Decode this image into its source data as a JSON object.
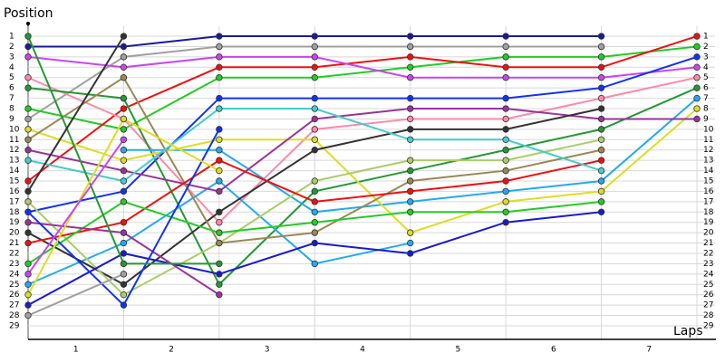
{
  "chart_data": {
    "type": "line",
    "y_label": "Position",
    "x_label": "Laps",
    "categories": [
      "1",
      "2",
      "3",
      "4",
      "5",
      "6",
      "7"
    ],
    "x": [
      0,
      1,
      2,
      3,
      4,
      5,
      6,
      7
    ],
    "xlim": [
      0,
      7
    ],
    "ylim": [
      30,
      0
    ],
    "yticks": [
      1,
      2,
      3,
      4,
      5,
      6,
      7,
      8,
      9,
      10,
      11,
      12,
      13,
      14,
      15,
      16,
      17,
      18,
      19,
      20,
      21,
      22,
      23,
      24,
      25,
      26,
      27,
      28,
      29
    ],
    "grid": true,
    "series": [
      {
        "color": "#1a1a9a",
        "values": [
          2,
          2,
          1,
          1,
          1,
          1,
          1,
          null
        ]
      },
      {
        "color": "#a0a0a0",
        "values": [
          9,
          3,
          2,
          2,
          2,
          2,
          2,
          null
        ]
      },
      {
        "color": "#22cc22",
        "values": [
          8,
          10,
          5,
          5,
          4,
          3,
          3,
          2
        ]
      },
      {
        "color": "#ee1111",
        "values": [
          15,
          8,
          4,
          4,
          3,
          4,
          4,
          1
        ]
      },
      {
        "color": "#cc44ee",
        "values": [
          3,
          4,
          3,
          3,
          5,
          5,
          5,
          4
        ]
      },
      {
        "color": "#1133ee",
        "values": [
          18,
          16,
          7,
          7,
          7,
          7,
          6,
          3
        ]
      },
      {
        "color": "#ff88aa",
        "values": [
          5,
          9,
          19,
          10,
          9,
          9,
          7,
          5
        ]
      },
      {
        "color": "#229933",
        "values": [
          6,
          7,
          25,
          16,
          14,
          12,
          10,
          6
        ]
      },
      {
        "color": "#22aaee",
        "values": [
          25,
          21,
          15,
          23,
          21,
          null,
          null,
          null
        ]
      },
      {
        "color": "#22aaee",
        "values": [
          null,
          12,
          12,
          18,
          17,
          16,
          15,
          7
        ]
      },
      {
        "color": "#dddd22",
        "values": [
          10,
          13,
          11,
          11,
          20,
          17,
          16,
          8
        ]
      },
      {
        "color": "#993399",
        "values": [
          12,
          14,
          16,
          9,
          8,
          8,
          9,
          9
        ]
      },
      {
        "color": "#333333",
        "values": [
          20,
          25,
          18,
          12,
          10,
          10,
          8,
          null
        ]
      },
      {
        "color": "#aacc66",
        "values": [
          17,
          26,
          21,
          15,
          13,
          13,
          11,
          null
        ]
      },
      {
        "color": "#998855",
        "values": [
          11,
          5,
          21,
          20,
          15,
          14,
          12,
          null
        ]
      },
      {
        "color": "#ee1111",
        "values": [
          21,
          19,
          13,
          17,
          16,
          15,
          13,
          null
        ]
      },
      {
        "color": "#44cccc",
        "values": [
          13,
          15,
          8,
          8,
          11,
          11,
          14,
          null
        ]
      },
      {
        "color": "#22cc22",
        "values": [
          23,
          17,
          20,
          19,
          18,
          18,
          17,
          null
        ]
      },
      {
        "color": "#1a1acc",
        "values": [
          27,
          22,
          24,
          21,
          22,
          19,
          18,
          null
        ]
      },
      {
        "color": "#993399",
        "values": [
          19,
          20,
          26,
          null,
          null,
          null,
          null,
          null
        ]
      },
      {
        "color": "#1133ee",
        "values": [
          18,
          27,
          10,
          null,
          null,
          null,
          null,
          null
        ]
      },
      {
        "color": "#229933",
        "values": [
          1,
          23,
          23,
          null,
          null,
          null,
          null,
          null
        ]
      },
      {
        "color": "#dddd22",
        "values": [
          26,
          9,
          14,
          null,
          null,
          null,
          null,
          null
        ]
      },
      {
        "color": "#cc44ee",
        "values": [
          24,
          11,
          null,
          null,
          null,
          null,
          null,
          null
        ]
      },
      {
        "color": "#a0a0a0",
        "values": [
          28,
          24,
          null,
          null,
          null,
          null,
          null,
          null
        ]
      },
      {
        "color": "#333333",
        "values": [
          16,
          1,
          null,
          null,
          null,
          null,
          null,
          null
        ]
      }
    ]
  }
}
